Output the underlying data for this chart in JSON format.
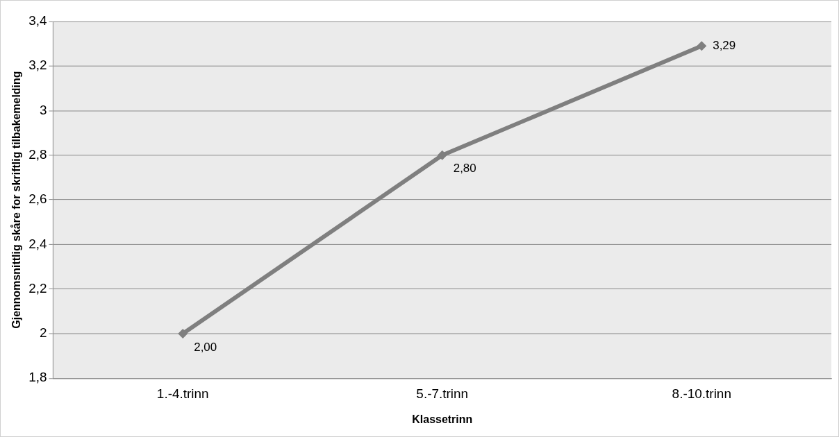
{
  "chart_data": {
    "type": "line",
    "xlabel": "Klassetrinn",
    "ylabel": "Gjennomsnittlig skåre for skriftlig tilbakemelding",
    "categories": [
      "1.-4.trinn",
      "5.-7.trinn",
      "8.-10.trinn"
    ],
    "series": [
      {
        "color": "#7f7f7f",
        "values": [
          2.0,
          2.8,
          3.29
        ],
        "value_labels": [
          "2,00",
          "2,80",
          "3,29"
        ]
      }
    ],
    "ylim": [
      1.8,
      3.4
    ],
    "yticks": [
      {
        "value": 1.8,
        "label": "1,8"
      },
      {
        "value": 2,
        "label": "2"
      },
      {
        "value": 2.2,
        "label": "2,2"
      },
      {
        "value": 2.4,
        "label": "2,4"
      },
      {
        "value": 2.6,
        "label": "2,6"
      },
      {
        "value": 2.8,
        "label": "2,8"
      },
      {
        "value": 3,
        "label": "3"
      },
      {
        "value": 3.2,
        "label": "3,2"
      },
      {
        "value": 3.4,
        "label": "3,4"
      }
    ],
    "grid": "y",
    "legend": false,
    "marker": "diamond",
    "line_style": "solid"
  }
}
